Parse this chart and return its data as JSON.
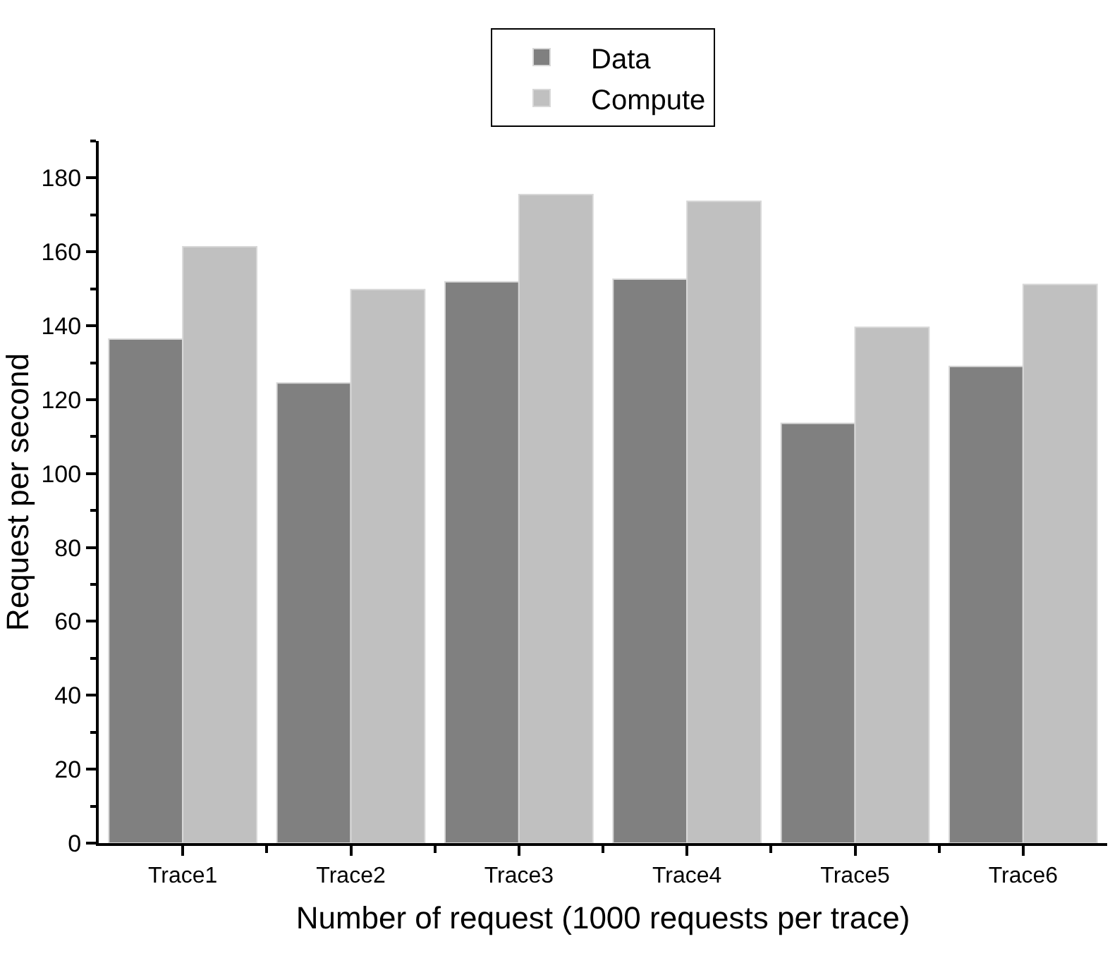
{
  "chart_data": {
    "type": "bar",
    "xlabel": "Number of request (1000 requests per trace)",
    "ylabel": "Request per second",
    "categories": [
      "Trace1",
      "Trace2",
      "Trace3",
      "Trace4",
      "Trace5",
      "Trace6"
    ],
    "series": [
      {
        "name": "Data",
        "color": "#808080",
        "values": [
          136.4,
          124.5,
          151.9,
          152.6,
          113.6,
          129
        ]
      },
      {
        "name": "Compute",
        "color": "#c0c0c0",
        "values": [
          161.4,
          149.8,
          175.5,
          173.7,
          139.6,
          151.2
        ]
      }
    ],
    "ylim": [
      0,
      190
    ],
    "yticks": [
      0,
      20,
      40,
      60,
      80,
      100,
      120,
      140,
      160,
      180
    ],
    "grid": false,
    "legend": "top"
  }
}
